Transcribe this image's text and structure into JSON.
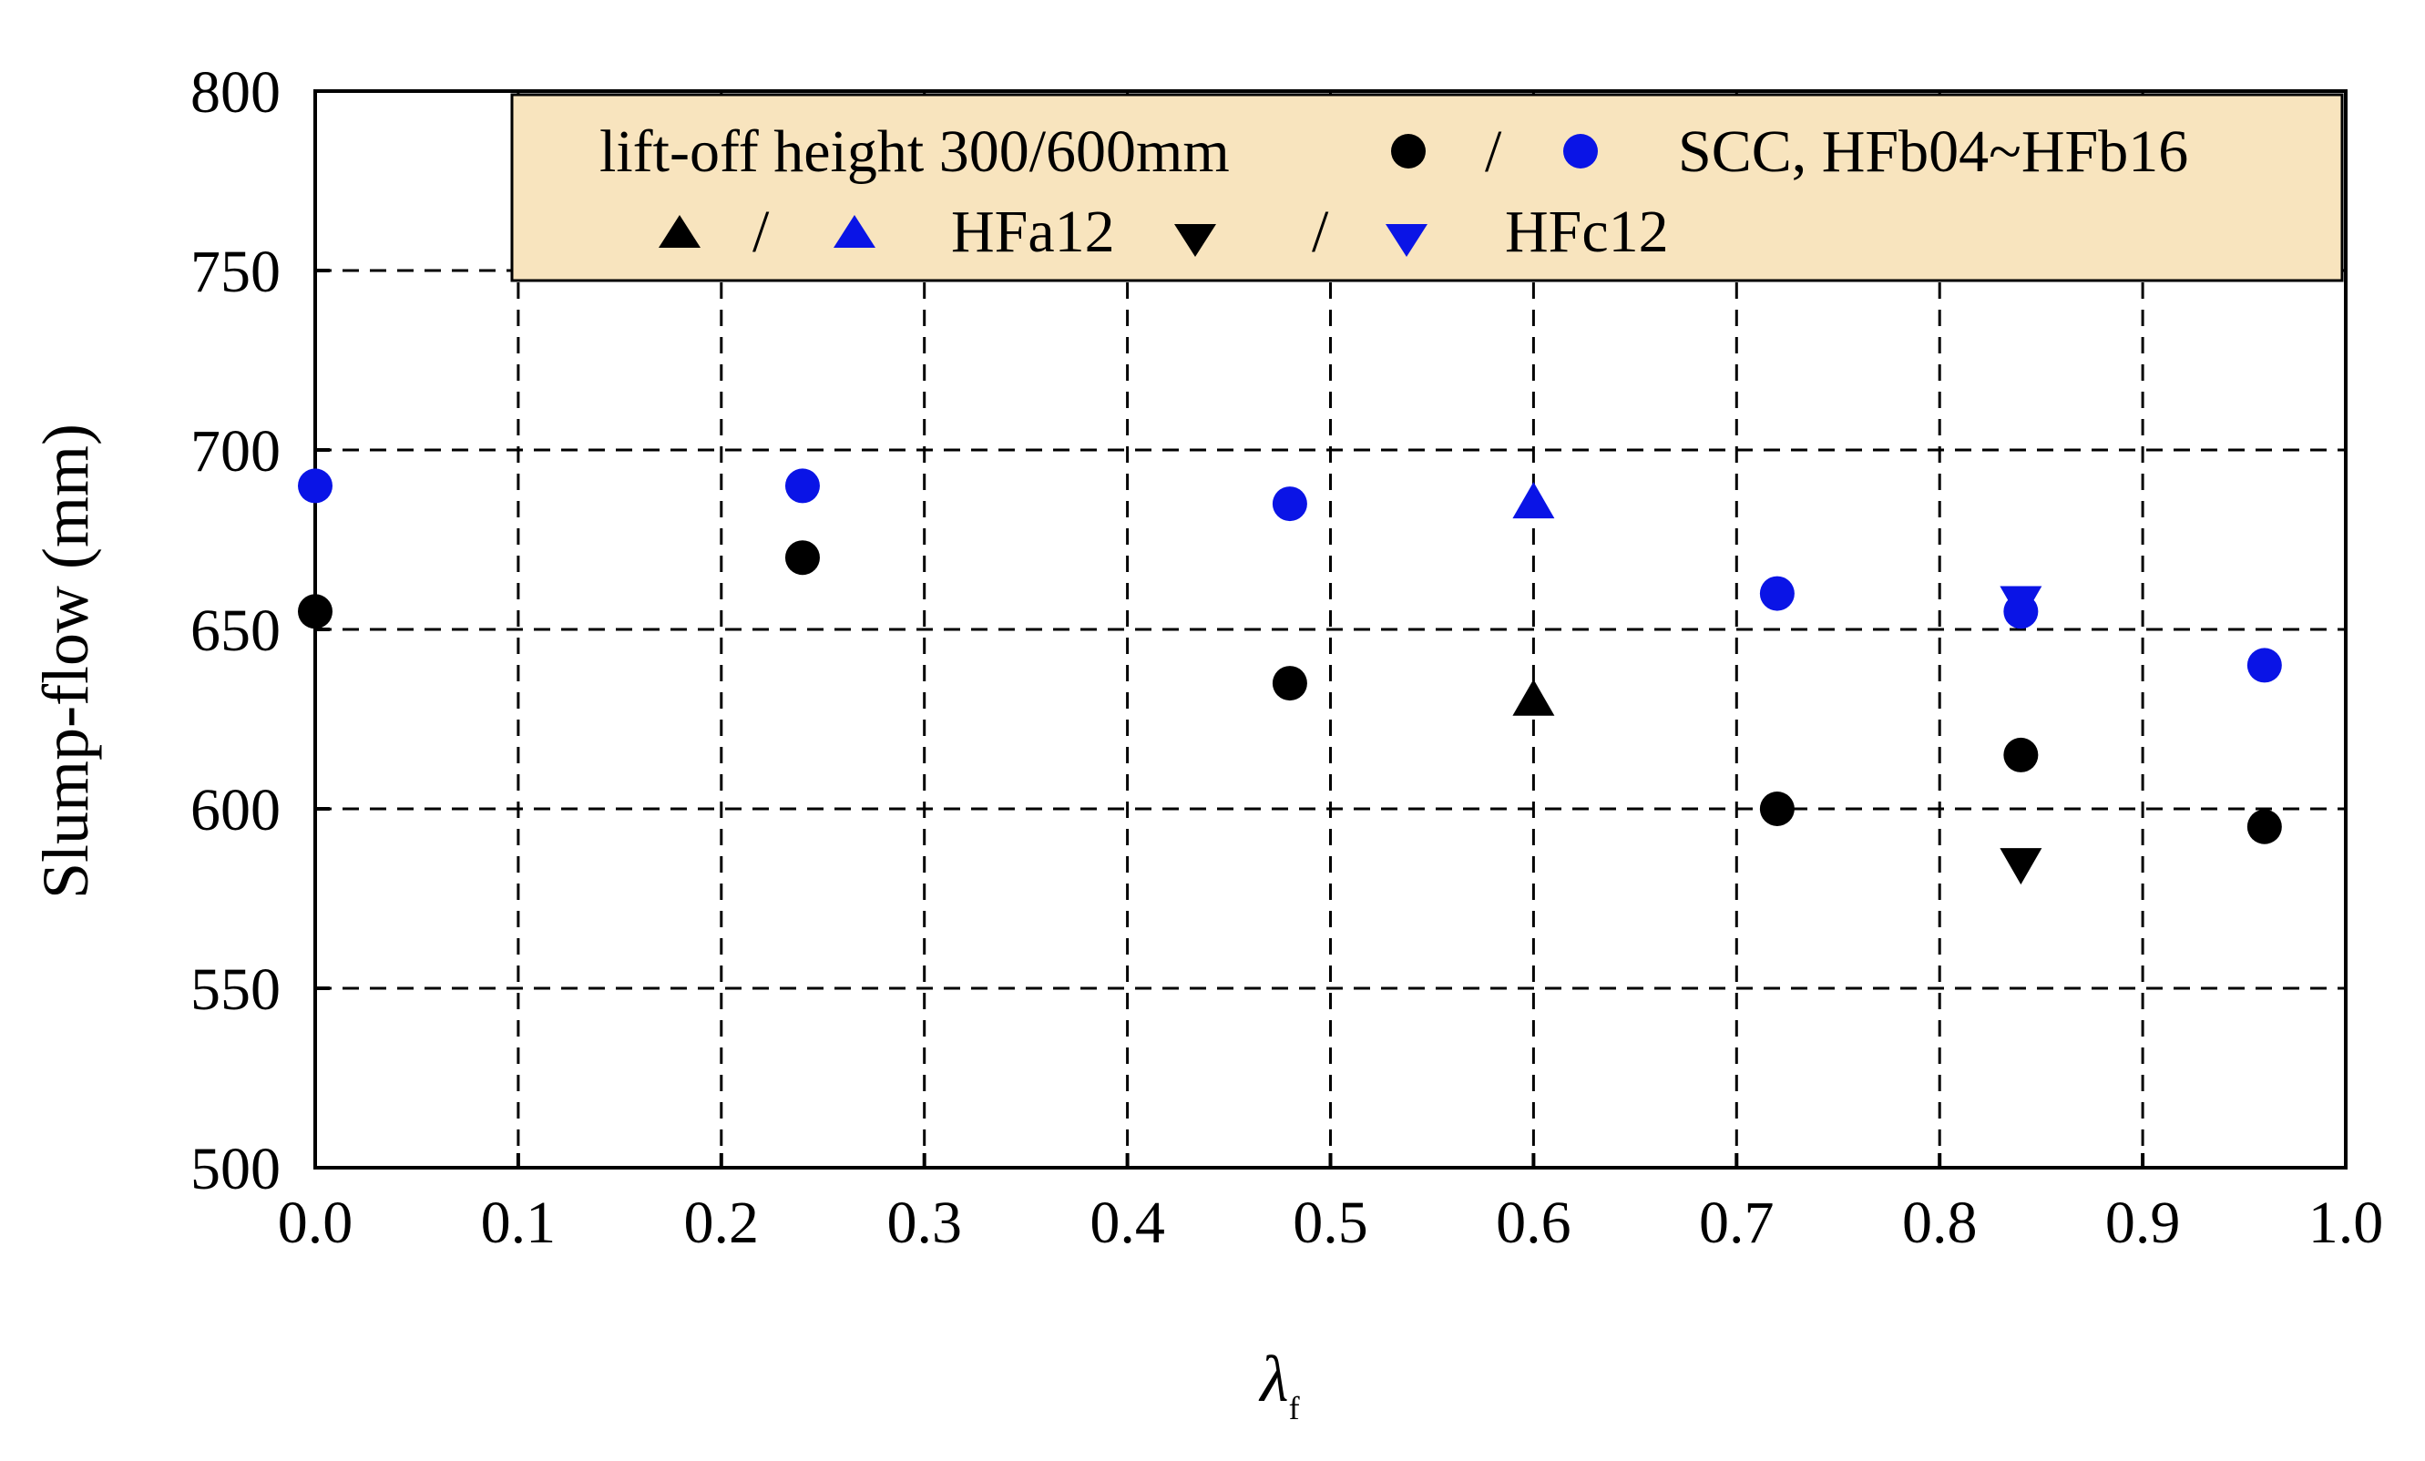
{
  "chart_data": {
    "type": "scatter",
    "title": "",
    "xlabel": "λ",
    "xlabel_sub": "f",
    "ylabel": "Slump-flow (mm)",
    "xlim": [
      0.0,
      1.0
    ],
    "ylim": [
      500,
      800
    ],
    "x_ticks": [
      0.0,
      0.1,
      0.2,
      0.3,
      0.4,
      0.5,
      0.6,
      0.7,
      0.8,
      0.9,
      1.0
    ],
    "x_tick_labels": [
      "0.0",
      "0.1",
      "0.2",
      "0.3",
      "0.4",
      "0.5",
      "0.6",
      "0.7",
      "0.8",
      "0.9",
      "1.0"
    ],
    "y_ticks": [
      500,
      550,
      600,
      650,
      700,
      750,
      800
    ],
    "y_tick_labels": [
      "500",
      "550",
      "600",
      "650",
      "700",
      "750",
      "800"
    ],
    "grid": true,
    "legend_position": "top",
    "legend": {
      "row1_text": "lift-off height 300/600mm",
      "row1_sep": "/",
      "row1_label": "SCC, HFb04~HFb16",
      "row2_sep1": "/",
      "row2_label1": "HFa12",
      "row2_sep2": "/",
      "row2_label2": "HFc12",
      "background": "#f8e4be"
    },
    "series": [
      {
        "name": "SCC, HFb04~HFb16 (300mm)",
        "marker": "circle",
        "color": "#000000",
        "x": [
          0.0,
          0.24,
          0.48,
          0.72,
          0.84,
          0.96
        ],
        "y": [
          655,
          670,
          635,
          600,
          615,
          595
        ]
      },
      {
        "name": "SCC, HFb04~HFb16 (600mm)",
        "marker": "circle",
        "color": "#0a14e6",
        "x": [
          0.0,
          0.24,
          0.48,
          0.72,
          0.84,
          0.96
        ],
        "y": [
          690,
          690,
          685,
          660,
          655,
          640
        ]
      },
      {
        "name": "HFa12 (300mm)",
        "marker": "triangle-up",
        "color": "#000000",
        "x": [
          0.6
        ],
        "y": [
          630
        ]
      },
      {
        "name": "HFa12 (600mm)",
        "marker": "triangle-up",
        "color": "#0a14e6",
        "x": [
          0.6
        ],
        "y": [
          685
        ]
      },
      {
        "name": "HFc12 (300mm)",
        "marker": "triangle-down",
        "color": "#000000",
        "x": [
          0.84
        ],
        "y": [
          585
        ]
      },
      {
        "name": "HFc12 (600mm)",
        "marker": "triangle-down",
        "color": "#0a14e6",
        "x": [
          0.84
        ],
        "y": [
          658
        ]
      }
    ]
  }
}
